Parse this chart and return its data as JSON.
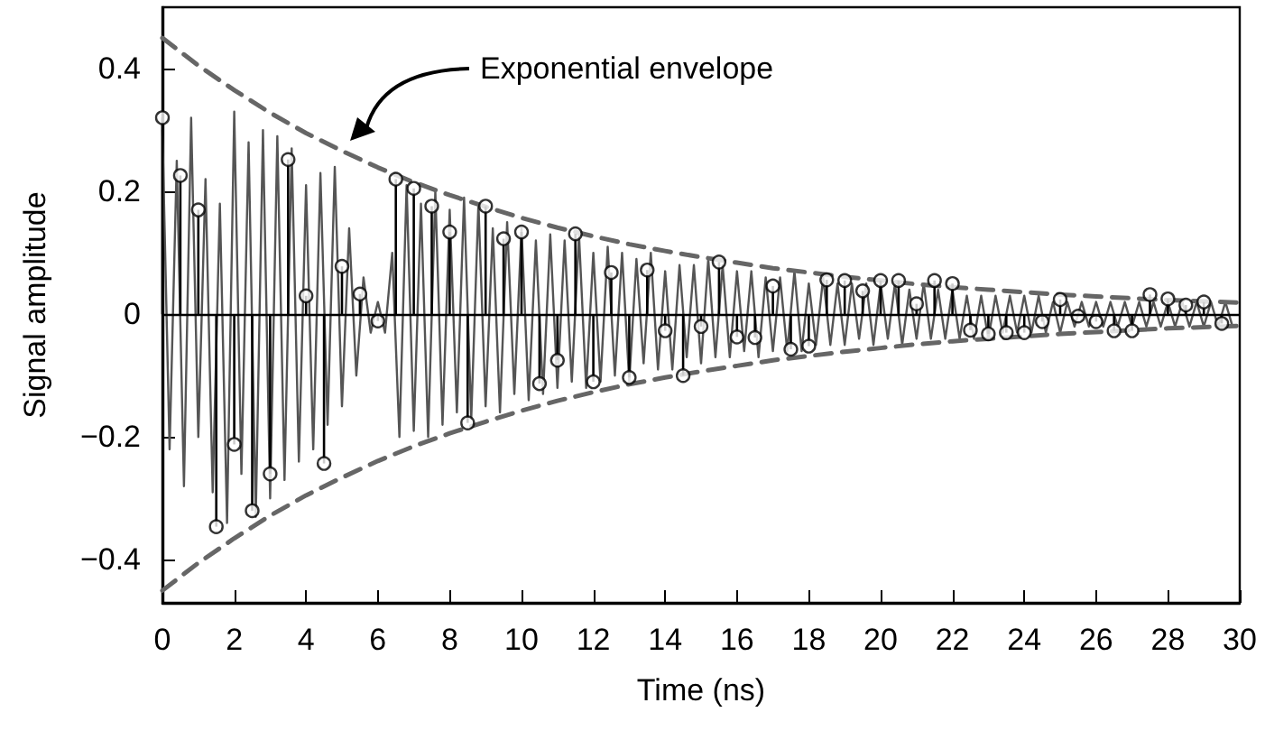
{
  "chart_data": {
    "type": "line",
    "xlabel": "Time (ns)",
    "ylabel": "Signal amplitude",
    "xlim": [
      0,
      30
    ],
    "xticks": [
      0,
      2,
      4,
      6,
      8,
      10,
      12,
      14,
      16,
      18,
      20,
      22,
      24,
      26,
      28,
      30
    ],
    "ylim": [
      -0.47,
      0.5
    ],
    "yticks": [
      {
        "value": -0.4,
        "label": "−0.4"
      },
      {
        "value": -0.2,
        "label": "−0.2"
      },
      0,
      0.2,
      0.4
    ],
    "grid": false,
    "x": [
      0,
      0.2,
      0.4,
      0.6,
      0.8,
      1,
      1.2,
      1.4,
      1.6,
      1.8,
      2,
      2.2,
      2.4,
      2.6,
      2.8,
      3,
      3.2,
      3.4,
      3.6,
      3.8,
      4,
      4.2,
      4.4,
      4.6,
      4.8,
      5,
      5.2,
      5.4,
      5.6,
      5.8,
      6,
      6.2,
      6.4,
      6.6,
      6.8,
      7,
      7.2,
      7.4,
      7.6,
      7.8,
      8,
      8.2,
      8.4,
      8.6,
      8.8,
      9,
      9.2,
      9.4,
      9.6,
      9.8,
      10,
      10.2,
      10.4,
      10.6,
      10.8,
      11,
      11.2,
      11.4,
      11.6,
      11.8,
      12,
      12.2,
      12.4,
      12.6,
      12.8,
      13,
      13.2,
      13.4,
      13.6,
      13.8,
      14,
      14.2,
      14.4,
      14.6,
      14.8,
      15,
      15.2,
      15.4,
      15.6,
      15.8,
      16,
      16.2,
      16.4,
      16.6,
      16.8,
      17,
      17.2,
      17.4,
      17.6,
      17.8,
      18,
      18.2,
      18.4,
      18.6,
      18.8,
      19,
      19.2,
      19.4,
      19.6,
      19.8,
      20,
      20.2,
      20.4,
      20.6,
      20.8,
      21,
      21.2,
      21.4,
      21.6,
      21.8,
      22,
      22.2,
      22.4,
      22.6,
      22.8,
      23,
      23.2,
      23.4,
      23.6,
      23.8,
      24,
      24.2,
      24.4,
      24.6,
      24.8,
      25,
      25.2,
      25.4,
      25.6,
      25.8,
      26,
      26.2,
      26.4,
      26.6,
      26.8,
      27,
      27.2,
      27.4,
      27.6,
      27.8,
      28,
      28.2,
      28.4,
      28.6,
      28.8,
      29,
      29.2,
      29.4,
      29.6,
      29.8
    ],
    "series": [
      {
        "color": "#555555",
        "marker": "none",
        "line_style": "solid",
        "values": [
          0.3,
          -0.22,
          0.25,
          -0.28,
          0.32,
          -0.2,
          0.22,
          -0.29,
          0.18,
          -0.34,
          0.33,
          -0.26,
          0.28,
          -0.33,
          0.3,
          -0.3,
          0.29,
          -0.27,
          0.27,
          -0.24,
          0.21,
          -0.22,
          0.23,
          -0.18,
          0.24,
          -0.15,
          0.14,
          -0.1,
          0.06,
          -0.03,
          0.02,
          -0.03,
          0.1,
          -0.2,
          0.21,
          -0.19,
          0.18,
          -0.2,
          0.2,
          -0.18,
          0.17,
          -0.16,
          0.19,
          -0.17,
          0.18,
          -0.15,
          0.14,
          -0.16,
          0.15,
          -0.13,
          0.14,
          -0.14,
          0.12,
          -0.13,
          0.13,
          -0.12,
          0.12,
          -0.11,
          0.13,
          -0.12,
          0.1,
          -0.11,
          0.11,
          -0.1,
          0.1,
          -0.11,
          0.09,
          -0.08,
          0.1,
          -0.09,
          0.07,
          -0.09,
          0.08,
          -0.07,
          0.08,
          -0.08,
          0.09,
          -0.07,
          0.08,
          -0.07,
          0.07,
          -0.06,
          0.07,
          -0.07,
          0.06,
          -0.06,
          0.06,
          -0.06,
          0.07,
          -0.06,
          0.05,
          -0.05,
          0.06,
          -0.05,
          0.05,
          -0.05,
          0.05,
          -0.04,
          0.05,
          -0.05,
          0.05,
          -0.04,
          0.05,
          -0.05,
          0.04,
          -0.04,
          0.05,
          -0.04,
          0.04,
          -0.04,
          0.04,
          -0.04,
          0.03,
          -0.04,
          0.03,
          -0.04,
          0.03,
          -0.03,
          0.03,
          -0.03,
          0.03,
          -0.03,
          0.03,
          -0.03,
          0.02,
          -0.03,
          0.02,
          -0.02,
          0.02,
          -0.02,
          0.02,
          -0.02,
          0.02,
          -0.02,
          0.02,
          -0.02,
          0.02,
          -0.02,
          0.02,
          -0.02,
          0.02,
          -0.02,
          0.02,
          -0.02,
          0.02,
          -0.02,
          0.02,
          -0.02,
          0.02,
          -0.02
        ]
      },
      {
        "color": "#666666",
        "marker": "none",
        "line_style": "dashed",
        "x": [
          0,
          1,
          2,
          3,
          4,
          5,
          6,
          7,
          8,
          9,
          10,
          11,
          12,
          13,
          14,
          15,
          16,
          17,
          18,
          19,
          20,
          21,
          22,
          23,
          24,
          25,
          26,
          27,
          28,
          29,
          30
        ],
        "values": [
          0.45,
          0.405,
          0.365,
          0.328,
          0.295,
          0.266,
          0.239,
          0.215,
          0.194,
          0.175,
          0.157,
          0.141,
          0.127,
          0.114,
          0.103,
          0.093,
          0.084,
          0.075,
          0.068,
          0.061,
          0.055,
          0.049,
          0.044,
          0.04,
          0.036,
          0.032,
          0.029,
          0.026,
          0.023,
          0.021,
          0.019
        ]
      },
      {
        "color": "#666666",
        "marker": "none",
        "line_style": "dashed",
        "x": [
          0,
          1,
          2,
          3,
          4,
          5,
          6,
          7,
          8,
          9,
          10,
          11,
          12,
          13,
          14,
          15,
          16,
          17,
          18,
          19,
          20,
          21,
          22,
          23,
          24,
          25,
          26,
          27,
          28,
          29,
          30
        ],
        "values": [
          -0.45,
          -0.405,
          -0.365,
          -0.328,
          -0.295,
          -0.266,
          -0.239,
          -0.215,
          -0.194,
          -0.175,
          -0.157,
          -0.141,
          -0.127,
          -0.114,
          -0.103,
          -0.093,
          -0.084,
          -0.075,
          -0.068,
          -0.061,
          -0.055,
          -0.049,
          -0.044,
          -0.04,
          -0.036,
          -0.032,
          -0.029,
          -0.026,
          -0.023,
          -0.021,
          -0.019
        ]
      },
      {
        "type": "lollipop",
        "color": "#000000",
        "marker": "circle",
        "x": [
          0,
          0.5,
          1,
          1.5,
          2,
          2.5,
          3,
          3.5,
          4,
          4.5,
          5,
          5.5,
          6,
          6.5,
          7,
          7.5,
          8,
          8.5,
          9,
          9.5,
          10,
          10.5,
          11,
          11.5,
          12,
          12.5,
          13,
          13.5,
          14,
          14.5,
          15,
          15.5,
          16,
          16.5,
          17,
          17.5,
          18,
          18.5,
          19,
          19.5,
          20,
          20.5,
          21,
          21.5,
          22,
          22.5,
          23,
          23.5,
          24,
          24.5,
          25,
          25.5,
          26,
          26.5,
          27,
          27.5,
          28,
          28.5,
          29,
          29.5
        ],
        "values": [
          0.32,
          0.226,
          0.17,
          -0.346,
          -0.212,
          -0.32,
          -0.26,
          0.252,
          0.03,
          -0.243,
          0.078,
          0.033,
          -0.011,
          0.22,
          0.205,
          0.176,
          0.134,
          -0.177,
          0.176,
          0.123,
          0.134,
          -0.113,
          -0.075,
          0.131,
          -0.11,
          0.068,
          -0.103,
          0.072,
          -0.027,
          -0.1,
          -0.02,
          0.085,
          -0.037,
          -0.038,
          0.046,
          -0.057,
          -0.052,
          0.056,
          0.055,
          0.038,
          0.055,
          0.055,
          0.017,
          0.055,
          0.05,
          -0.026,
          -0.032,
          -0.03,
          -0.03,
          -0.012,
          0.024,
          -0.003,
          -0.012,
          -0.027,
          -0.027,
          0.032,
          0.025,
          0.015,
          0.02,
          -0.015
        ]
      }
    ],
    "ref_lines": [
      {
        "axis": "y",
        "value": 0,
        "color": "#000000"
      }
    ],
    "annotations": [
      "Exponential envelope"
    ]
  }
}
